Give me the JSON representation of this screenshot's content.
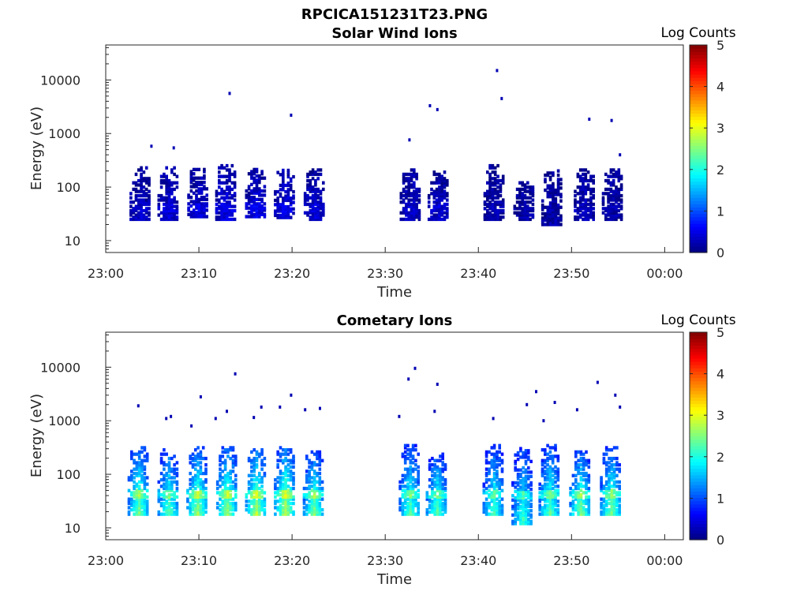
{
  "figure": {
    "title": "RPCICA151231T23.PNG"
  },
  "colorbar": {
    "title": "Log Counts",
    "ticks": [
      "0",
      "1",
      "2",
      "3",
      "4",
      "5"
    ],
    "range": [
      0,
      5
    ],
    "colormap": "jet"
  },
  "chart_data": [
    {
      "type": "heatmap",
      "title": "Solar Wind Ions",
      "xlabel": "Time",
      "ylabel": "Energy (eV)",
      "x_ticks": [
        "23:00",
        "23:10",
        "23:20",
        "23:30",
        "23:40",
        "23:50",
        "00:00"
      ],
      "y_ticks": [
        "10",
        "100",
        "1000",
        "10000"
      ],
      "y_scale": "log",
      "x_range_minutes": [
        0,
        62
      ],
      "y_range_eV": [
        6,
        45000
      ],
      "colorbar_title": "Log Counts",
      "color_range": [
        0,
        5
      ],
      "bursts": [
        {
          "t": 3.8,
          "lo": 25,
          "hi": 220,
          "level": 0.25
        },
        {
          "t": 6.8,
          "lo": 25,
          "hi": 230,
          "level": 0.3
        },
        {
          "t": 10.0,
          "lo": 28,
          "hi": 220,
          "level": 0.3
        },
        {
          "t": 13.0,
          "lo": 25,
          "hi": 260,
          "level": 0.35
        },
        {
          "t": 16.2,
          "lo": 28,
          "hi": 210,
          "level": 0.35
        },
        {
          "t": 19.3,
          "lo": 27,
          "hi": 210,
          "level": 0.35
        },
        {
          "t": 22.5,
          "lo": 25,
          "hi": 210,
          "level": 0.3
        },
        {
          "t": 32.8,
          "lo": 25,
          "hi": 210,
          "level": 0.25
        },
        {
          "t": 35.8,
          "lo": 25,
          "hi": 190,
          "level": 0.25
        },
        {
          "t": 41.8,
          "lo": 25,
          "hi": 240,
          "level": 0.15
        },
        {
          "t": 45.0,
          "lo": 25,
          "hi": 120,
          "level": 0.15
        },
        {
          "t": 48.0,
          "lo": 20,
          "hi": 200,
          "level": 0.15
        },
        {
          "t": 51.5,
          "lo": 25,
          "hi": 220,
          "level": 0.2
        },
        {
          "t": 54.5,
          "lo": 25,
          "hi": 200,
          "level": 0.15
        }
      ],
      "points": [
        {
          "t": 4.9,
          "e": 580
        },
        {
          "t": 7.3,
          "e": 540
        },
        {
          "t": 13.3,
          "e": 5600
        },
        {
          "t": 19.9,
          "e": 2200
        },
        {
          "t": 32.6,
          "e": 760
        },
        {
          "t": 34.8,
          "e": 3300
        },
        {
          "t": 35.6,
          "e": 2800
        },
        {
          "t": 42.0,
          "e": 15000
        },
        {
          "t": 42.5,
          "e": 4500
        },
        {
          "t": 51.9,
          "e": 1850
        },
        {
          "t": 54.3,
          "e": 1750
        },
        {
          "t": 55.2,
          "e": 400
        }
      ]
    },
    {
      "type": "heatmap",
      "title": "Cometary Ions",
      "xlabel": "Time",
      "ylabel": "Energy (eV)",
      "x_ticks": [
        "23:00",
        "23:10",
        "23:20",
        "23:30",
        "23:40",
        "23:50",
        "00:00"
      ],
      "y_ticks": [
        "10",
        "100",
        "1000",
        "10000"
      ],
      "y_scale": "log",
      "x_range_minutes": [
        0,
        62
      ],
      "y_range_eV": [
        6,
        45000
      ],
      "colorbar_title": "Log Counts",
      "color_range": [
        0,
        5
      ],
      "bursts": [
        {
          "t": 3.6,
          "lo": 18,
          "hi": 330,
          "level": 1.7
        },
        {
          "t": 6.8,
          "lo": 18,
          "hi": 280,
          "level": 1.6
        },
        {
          "t": 9.9,
          "lo": 18,
          "hi": 300,
          "level": 1.8
        },
        {
          "t": 13.1,
          "lo": 18,
          "hi": 320,
          "level": 1.8
        },
        {
          "t": 16.2,
          "lo": 18,
          "hi": 280,
          "level": 1.9
        },
        {
          "t": 19.3,
          "lo": 18,
          "hi": 300,
          "level": 1.9
        },
        {
          "t": 22.4,
          "lo": 18,
          "hi": 250,
          "level": 1.7
        },
        {
          "t": 32.7,
          "lo": 18,
          "hi": 330,
          "level": 1.6
        },
        {
          "t": 35.6,
          "lo": 18,
          "hi": 230,
          "level": 1.6
        },
        {
          "t": 41.7,
          "lo": 18,
          "hi": 330,
          "level": 1.5
        },
        {
          "t": 44.8,
          "lo": 12,
          "hi": 300,
          "level": 1.5
        },
        {
          "t": 47.7,
          "lo": 18,
          "hi": 330,
          "level": 1.6
        },
        {
          "t": 51.0,
          "lo": 18,
          "hi": 250,
          "level": 1.7
        },
        {
          "t": 54.3,
          "lo": 18,
          "hi": 300,
          "level": 1.7
        }
      ],
      "points": [
        {
          "t": 3.5,
          "e": 1900
        },
        {
          "t": 6.5,
          "e": 1100
        },
        {
          "t": 7.0,
          "e": 1200
        },
        {
          "t": 9.2,
          "e": 800
        },
        {
          "t": 10.2,
          "e": 2800
        },
        {
          "t": 11.8,
          "e": 1100
        },
        {
          "t": 13.0,
          "e": 1500
        },
        {
          "t": 13.9,
          "e": 7500
        },
        {
          "t": 15.9,
          "e": 1150
        },
        {
          "t": 16.7,
          "e": 1800
        },
        {
          "t": 18.7,
          "e": 1800
        },
        {
          "t": 19.9,
          "e": 3000
        },
        {
          "t": 21.4,
          "e": 1600
        },
        {
          "t": 23.0,
          "e": 1700
        },
        {
          "t": 31.5,
          "e": 1200
        },
        {
          "t": 32.5,
          "e": 6000
        },
        {
          "t": 33.2,
          "e": 9500
        },
        {
          "t": 35.6,
          "e": 4800
        },
        {
          "t": 35.3,
          "e": 1500
        },
        {
          "t": 41.6,
          "e": 1100
        },
        {
          "t": 45.2,
          "e": 2000
        },
        {
          "t": 46.2,
          "e": 3500
        },
        {
          "t": 47.0,
          "e": 1000
        },
        {
          "t": 48.2,
          "e": 2200
        },
        {
          "t": 50.6,
          "e": 1600
        },
        {
          "t": 52.8,
          "e": 5200
        },
        {
          "t": 54.7,
          "e": 3000
        },
        {
          "t": 55.2,
          "e": 1800
        }
      ]
    }
  ]
}
